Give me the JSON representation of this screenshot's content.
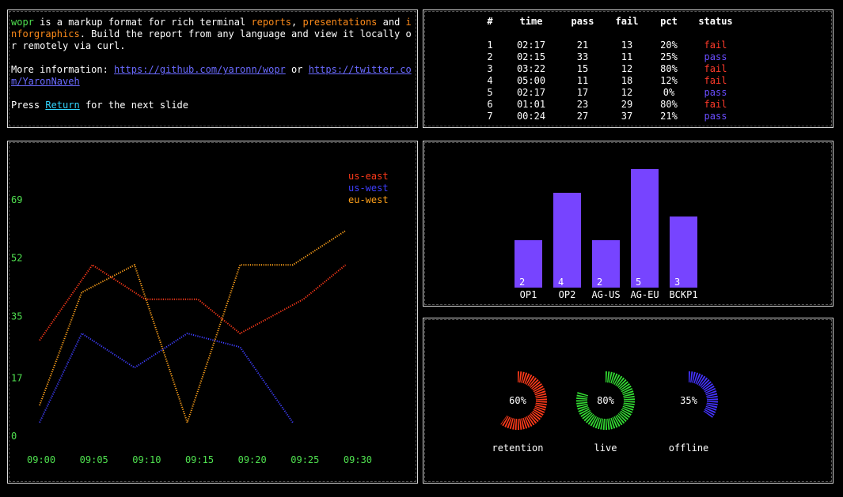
{
  "intro": {
    "name": "wopr",
    "text1": " is a markup format for rich terminal ",
    "word_reports": "reports",
    "comma": ", ",
    "word_presentations": "presentations",
    "and": " and ",
    "word_infographics": "inforgraphics",
    "text2": ". Build the report from any language and view it locally or remotely via curl.",
    "more_info": "More information: ",
    "link1": "https://github.com/yaronn/wopr",
    "or": " or ",
    "link2": "https://twitter.com/YaronNaveh",
    "press": "Press ",
    "return_key": "Return",
    "next": " for the next slide"
  },
  "table": {
    "headers": [
      "#",
      "time",
      "pass",
      "fail",
      "pct",
      "status"
    ],
    "rows": [
      [
        "1",
        "02:17",
        "21",
        "13",
        "20%",
        "fail"
      ],
      [
        "2",
        "02:15",
        "33",
        "11",
        "25%",
        "pass"
      ],
      [
        "3",
        "03:22",
        "15",
        "12",
        "80%",
        "fail"
      ],
      [
        "4",
        "05:00",
        "11",
        "18",
        "12%",
        "fail"
      ],
      [
        "5",
        "02:17",
        "17",
        "12",
        "0%",
        "pass"
      ],
      [
        "6",
        "01:01",
        "23",
        "29",
        "80%",
        "fail"
      ],
      [
        "7",
        "00:24",
        "27",
        "37",
        "21%",
        "pass"
      ]
    ]
  },
  "colors": {
    "us_east": "#ff3a1a",
    "us_west": "#3f3fff",
    "eu_west": "#ffa11a",
    "axis": "#4fe04f",
    "bar": "#7744ff",
    "donut_retention": "#ff3a1a",
    "donut_live": "#33dd33",
    "donut_offline": "#4433ff"
  },
  "chart_data": [
    {
      "type": "line",
      "title": "",
      "x": [
        "09:00",
        "09:05",
        "09:10",
        "09:15",
        "09:20",
        "09:25",
        "09:30"
      ],
      "y_ticks": [
        "0",
        "17",
        "35",
        "52",
        "69"
      ],
      "ylim": [
        0,
        69
      ],
      "series": [
        {
          "name": "us-east",
          "x": [
            0,
            5,
            10,
            15,
            19,
            25,
            29
          ],
          "values": [
            28,
            50,
            40,
            40,
            30,
            40,
            50
          ]
        },
        {
          "name": "us-west",
          "x": [
            0,
            4,
            9,
            14,
            19,
            24
          ],
          "values": [
            4,
            30,
            20,
            30,
            26,
            4
          ]
        },
        {
          "name": "eu-west",
          "x": [
            0,
            4,
            9,
            14,
            19,
            24,
            29
          ],
          "values": [
            9,
            42,
            50,
            4,
            50,
            50,
            60
          ]
        }
      ],
      "legend": "top-right"
    },
    {
      "type": "bar",
      "categories": [
        "OP1",
        "OP2",
        "AG-US",
        "AG-EU",
        "BCKP1"
      ],
      "values": [
        2,
        4,
        2,
        5,
        3
      ]
    },
    {
      "type": "donut",
      "items": [
        {
          "label": "retention",
          "percent": 60,
          "text": "60%"
        },
        {
          "label": "live",
          "percent": 80,
          "text": "80%"
        },
        {
          "label": "offline",
          "percent": 35,
          "text": "35%"
        }
      ]
    }
  ]
}
